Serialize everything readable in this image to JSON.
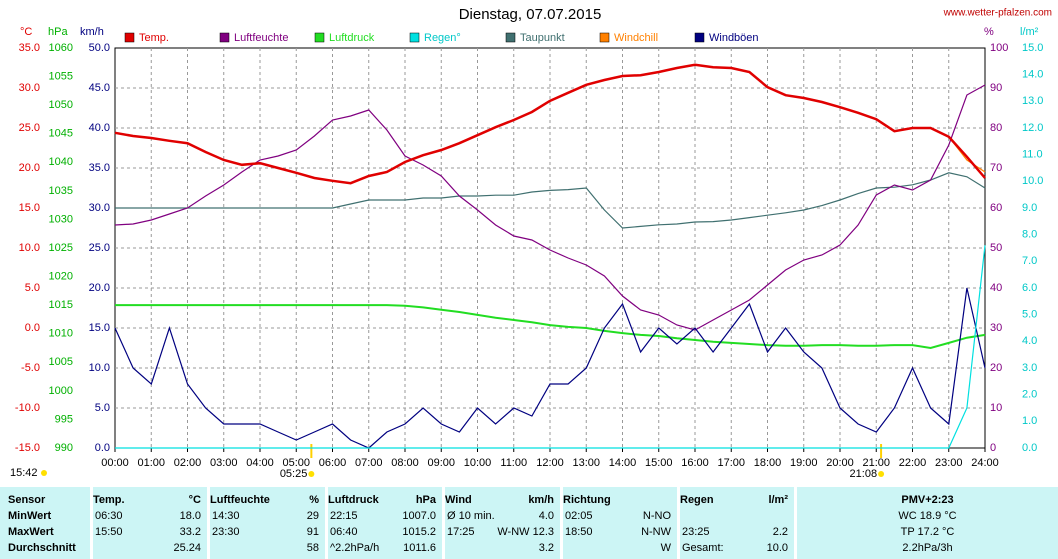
{
  "chart_data": {
    "type": "line",
    "title": "Dienstag, 07.07.2015",
    "source": "www.wetter-pfalzen.com",
    "updated": "15:42",
    "sun_markers": [
      {
        "label": "05:25",
        "x": 5.4167
      },
      {
        "label": "21:08",
        "x": 21.1333
      }
    ],
    "xlim": [
      0,
      24
    ],
    "xticks": [
      {
        "value": 0,
        "label": "00:00"
      },
      {
        "value": 1,
        "label": "01:00"
      },
      {
        "value": 2,
        "label": "02:00"
      },
      {
        "value": 3,
        "label": "03:00"
      },
      {
        "value": 4,
        "label": "04:00"
      },
      {
        "value": 5,
        "label": "05:00"
      },
      {
        "value": 6,
        "label": "06:00"
      },
      {
        "value": 7,
        "label": "07:00"
      },
      {
        "value": 8,
        "label": "08:00"
      },
      {
        "value": 9,
        "label": "09:00"
      },
      {
        "value": 10,
        "label": "10:00"
      },
      {
        "value": 11,
        "label": "11:00"
      },
      {
        "value": 12,
        "label": "12:00"
      },
      {
        "value": 13,
        "label": "13:00"
      },
      {
        "value": 14,
        "label": "14:00"
      },
      {
        "value": 15,
        "label": "15:00"
      },
      {
        "value": 16,
        "label": "16:00"
      },
      {
        "value": 17,
        "label": "17:00"
      },
      {
        "value": 18,
        "label": "18:00"
      },
      {
        "value": 19,
        "label": "19:00"
      },
      {
        "value": 20,
        "label": "20:00"
      },
      {
        "value": 21,
        "label": "21:00"
      },
      {
        "value": 22,
        "label": "22:00"
      },
      {
        "value": 23,
        "label": "23:00"
      },
      {
        "value": 24,
        "label": "24:00"
      }
    ],
    "grid": true,
    "axes": [
      {
        "unit": "°C",
        "color": "#e00000",
        "lim": [
          -15,
          35
        ],
        "ticks": [
          {
            "value": 35,
            "label": "35.0"
          },
          {
            "value": 30,
            "label": "30.0"
          },
          {
            "value": 25,
            "label": "25.0"
          },
          {
            "value": 20,
            "label": "20.0"
          },
          {
            "value": 15,
            "label": "15.0"
          },
          {
            "value": 10,
            "label": "10.0"
          },
          {
            "value": 5,
            "label": "5.0"
          },
          {
            "value": 0,
            "label": "0.0"
          },
          {
            "value": -5,
            "label": "-5.0"
          },
          {
            "value": -10,
            "label": "-10.0"
          },
          {
            "value": -15,
            "label": "-15.0"
          }
        ]
      },
      {
        "unit": "hPa",
        "color": "#00b000",
        "lim": [
          990,
          1060
        ],
        "ticks": [
          1060,
          1055,
          1050,
          1045,
          1040,
          1035,
          1030,
          1025,
          1020,
          1015,
          1010,
          1005,
          1000,
          995,
          990
        ]
      },
      {
        "unit": "km/h",
        "color": "#000080",
        "lim": [
          0,
          50
        ],
        "ticks": [
          {
            "value": 50,
            "label": "50.0"
          },
          {
            "value": 45,
            "label": "45.0"
          },
          {
            "value": 40,
            "label": "40.0"
          },
          {
            "value": 35,
            "label": "35.0"
          },
          {
            "value": 30,
            "label": "30.0"
          },
          {
            "value": 25,
            "label": "25.0"
          },
          {
            "value": 20,
            "label": "20.0"
          },
          {
            "value": 15,
            "label": "15.0"
          },
          {
            "value": 10,
            "label": "10.0"
          },
          {
            "value": 5,
            "label": "5.0"
          },
          {
            "value": 0,
            "label": "0.0"
          }
        ]
      },
      {
        "unit": "%",
        "color": "#800080",
        "lim": [
          0,
          100
        ],
        "ticks": [
          100,
          90,
          80,
          70,
          60,
          50,
          40,
          30,
          20,
          10,
          0
        ]
      },
      {
        "unit": "l/m²",
        "color": "#00c8c8",
        "lim": [
          0,
          15
        ],
        "ticks": [
          {
            "value": 15,
            "label": "15.0"
          },
          {
            "value": 14,
            "label": "14.0"
          },
          {
            "value": 13,
            "label": "13.0"
          },
          {
            "value": 12,
            "label": "12.0"
          },
          {
            "value": 11,
            "label": "11.0"
          },
          {
            "value": 10,
            "label": "10.0"
          },
          {
            "value": 9,
            "label": "9.0"
          },
          {
            "value": 8,
            "label": "8.0"
          },
          {
            "value": 7,
            "label": "7.0"
          },
          {
            "value": 6,
            "label": "6.0"
          },
          {
            "value": 5,
            "label": "5.0"
          },
          {
            "value": 4,
            "label": "4.0"
          },
          {
            "value": 3,
            "label": "3.0"
          },
          {
            "value": 2,
            "label": "2.0"
          },
          {
            "value": 1,
            "label": "1.0"
          },
          {
            "value": 0,
            "label": "0.0"
          }
        ]
      }
    ],
    "x": [
      0,
      0.5,
      1,
      1.5,
      2,
      2.5,
      3,
      3.5,
      4,
      4.5,
      5,
      5.5,
      6,
      6.5,
      7,
      7.5,
      8,
      8.5,
      9,
      9.5,
      10,
      10.5,
      11,
      11.5,
      12,
      12.5,
      13,
      13.5,
      14,
      14.5,
      15,
      15.5,
      16,
      16.5,
      17,
      17.5,
      18,
      18.5,
      19,
      19.5,
      20,
      20.5,
      21,
      21.5,
      22,
      22.5,
      23,
      23.5,
      24
    ],
    "series": [
      {
        "name": "Temp.",
        "color": "#e00000",
        "axis": 0,
        "values": [
          24.4,
          24.0,
          23.75,
          23.4,
          23.1,
          22.0,
          21,
          20.4,
          20.6,
          20.0,
          19.4,
          18.75,
          18.4,
          18.1,
          19,
          19.5,
          20.75,
          21.6,
          22.25,
          23.1,
          24.1,
          25.1,
          26,
          27,
          28.4,
          29.4,
          30.4,
          31,
          31.5,
          31.6,
          32,
          32.5,
          32.9,
          32.6,
          32.5,
          32,
          30.1,
          29.1,
          28.75,
          28.25,
          27.6,
          26.9,
          26.1,
          24.6,
          25,
          25,
          23.9,
          21.4,
          18.75
        ]
      },
      {
        "name": "Luftfeuchte",
        "color": "#800080",
        "axis": 3,
        "values": [
          55.75,
          56,
          57,
          58.5,
          60,
          63,
          65.75,
          69,
          72,
          73,
          74.5,
          78,
          82,
          83,
          84.5,
          79.5,
          73,
          70.75,
          68,
          63,
          59.5,
          55.75,
          53,
          52,
          49.5,
          47.5,
          45.75,
          43,
          38,
          34.5,
          33.25,
          30.75,
          29.5,
          32,
          34.5,
          37,
          40.75,
          44.5,
          47,
          48.25,
          50.75,
          55.75,
          63.25,
          65.75,
          64.5,
          67,
          75.75,
          88.25,
          90.75
        ]
      },
      {
        "name": "Luftdruck",
        "color": "#22dd22",
        "axis": 1,
        "values": [
          1015,
          1015,
          1015,
          1015,
          1015,
          1015,
          1015,
          1015,
          1015,
          1015,
          1015,
          1015,
          1015,
          1015,
          1015,
          1015,
          1014.9,
          1014.6,
          1014.2,
          1013.8,
          1013.3,
          1012.8,
          1012.4,
          1012,
          1011.5,
          1011.2,
          1011,
          1010.5,
          1010.1,
          1009.8,
          1009.6,
          1009.2,
          1008.9,
          1008.6,
          1008.4,
          1008.2,
          1008,
          1007.9,
          1007.9,
          1008,
          1008,
          1007.9,
          1007.9,
          1008,
          1008,
          1007.5,
          1008.4,
          1009.3,
          1009.8
        ]
      },
      {
        "name": "Regen°",
        "color": "#00e0e0",
        "axis": 4,
        "values": [
          0,
          0,
          0,
          0,
          0,
          0,
          0,
          0,
          0,
          0,
          0,
          0,
          0,
          0,
          0,
          0,
          0,
          0,
          0,
          0,
          0,
          0,
          0,
          0,
          0,
          0,
          0,
          0,
          0,
          0,
          0,
          0,
          0,
          0,
          0,
          0,
          0,
          0,
          0,
          0,
          0,
          0,
          0,
          0,
          0,
          0,
          0,
          1.5,
          7.6
        ]
      },
      {
        "name": "Taupunkt",
        "color": "#407070",
        "axis": 0,
        "values": [
          15,
          15,
          15,
          15,
          15,
          15,
          15,
          15,
          15,
          15,
          15,
          15,
          15,
          15.5,
          16,
          16,
          16,
          16.25,
          16.25,
          16.5,
          16.5,
          16.6,
          16.6,
          17,
          17.2,
          17.3,
          17.5,
          14.75,
          12.5,
          12.7,
          12.9,
          13,
          13.25,
          13.3,
          13.5,
          13.8,
          14.1,
          14.4,
          14.75,
          15.3,
          16,
          16.8,
          17.5,
          17.6,
          17.9,
          18.5,
          19.4,
          18.9,
          17.5
        ]
      },
      {
        "name": "Windchill",
        "color": "#ff8000",
        "axis": 0,
        "values": [
          24.4,
          24.0,
          23.75,
          23.4,
          23.1,
          22.0,
          21,
          20.4,
          20.6,
          20.0,
          19.4,
          18.75,
          18.4,
          18.1,
          19,
          19.5,
          20.75,
          21.6,
          22.25,
          23.1,
          24.1,
          25.1,
          26,
          27,
          28.4,
          29.4,
          30.4,
          31,
          31.5,
          31.6,
          32,
          32.5,
          32.9,
          32.6,
          32.5,
          32,
          30.1,
          29.1,
          28.75,
          28.25,
          27.6,
          26.9,
          26.1,
          24.6,
          25,
          25,
          23.9,
          21,
          19.5
        ]
      },
      {
        "name": "Windböen",
        "color": "#000080",
        "axis": 2,
        "values": [
          15,
          10,
          8,
          15,
          8,
          5,
          3,
          3,
          3,
          2,
          1,
          2,
          3,
          1,
          0,
          2,
          3,
          5,
          3,
          2,
          5,
          3,
          5,
          4,
          8,
          8,
          10,
          15,
          18,
          12,
          15,
          13,
          15,
          12,
          15,
          18,
          12,
          15,
          12,
          10,
          5,
          3,
          2,
          5,
          10,
          5,
          3,
          20,
          10
        ]
      }
    ]
  },
  "table": {
    "header": [
      {
        "name": "Sensor"
      },
      {
        "name": "Temp.",
        "unit": "°C"
      },
      {
        "name": "Luftfeuchte",
        "unit": "%"
      },
      {
        "name": "Luftdruck",
        "unit": "hPa"
      },
      {
        "name": "Wind",
        "unit": "km/h"
      },
      {
        "name": "Richtung"
      },
      {
        "name": "Regen",
        "unit": "l/m²"
      },
      {
        "name": "PMV+2:23"
      }
    ],
    "rows": [
      {
        "label": "MinWert",
        "cells": [
          {
            "l": "06:30",
            "r": "18.0"
          },
          {
            "l": "14:30",
            "r": "29"
          },
          {
            "l": "22:15",
            "r": "1007.0"
          },
          {
            "l": "Ø 10 min.",
            "r": "4.0"
          },
          {
            "l": "02:05",
            "r": "N-NO"
          },
          {},
          {
            "c": "WC 18.9 °C"
          }
        ]
      },
      {
        "label": "MaxWert",
        "cells": [
          {
            "l": "15:50",
            "r": "33.2"
          },
          {
            "l": "23:30",
            "r": "91"
          },
          {
            "l": "06:40",
            "r": "1015.2"
          },
          {
            "l": "17:25",
            "r": "W-NW 12.3"
          },
          {
            "l": "18:50",
            "r": "N-NW"
          },
          {
            "l": "23:25",
            "r": "2.2"
          },
          {
            "c": "TP 17.2 °C"
          }
        ]
      },
      {
        "label": "Durchschnitt",
        "cells": [
          {
            "r": "25.24"
          },
          {
            "r": "58"
          },
          {
            "l": "^2.2hPa/h",
            "r": "1011.6"
          },
          {
            "r": "3.2"
          },
          {
            "r": "W"
          },
          {
            "l": "Gesamt:",
            "r": "10.0"
          },
          {
            "c": "2.2hPa/3h"
          }
        ]
      }
    ]
  }
}
